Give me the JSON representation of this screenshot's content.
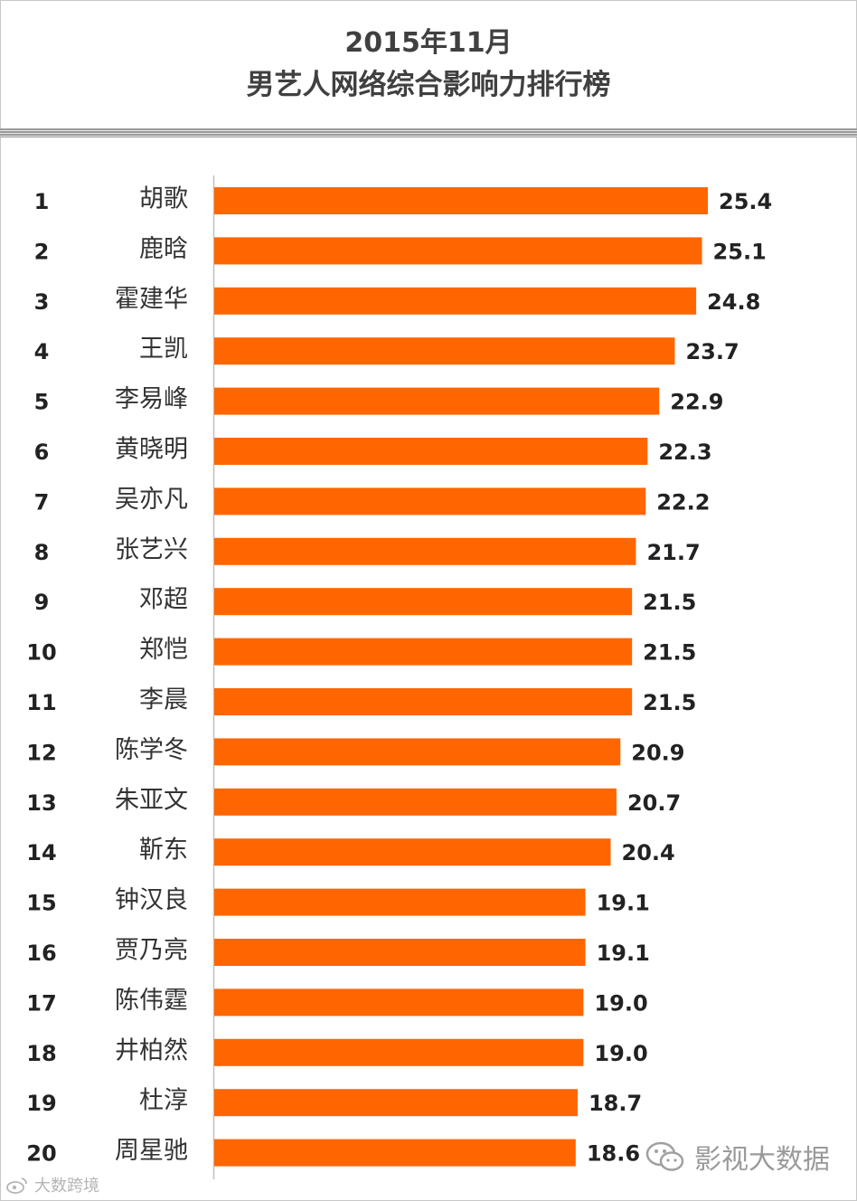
{
  "chart_data": {
    "type": "bar",
    "orientation": "horizontal",
    "title": "2015年11月",
    "subtitle": "男艺人网络综合影响力排行榜",
    "ranks": [
      "1",
      "2",
      "3",
      "4",
      "5",
      "6",
      "7",
      "8",
      "9",
      "10",
      "11",
      "12",
      "13",
      "14",
      "15",
      "16",
      "17",
      "18",
      "19",
      "20"
    ],
    "categories": [
      "胡歌",
      "鹿晗",
      "霍建华",
      "王凯",
      "李易峰",
      "黄晓明",
      "吴亦凡",
      "张艺兴",
      "邓超",
      "郑恺",
      "李晨",
      "陈学冬",
      "朱亚文",
      "靳东",
      "钟汉良",
      "贾乃亮",
      "陈伟霆",
      "井柏然",
      "杜淳",
      "周星驰"
    ],
    "values": [
      25.4,
      25.1,
      24.8,
      23.7,
      22.9,
      22.3,
      22.2,
      21.7,
      21.5,
      21.5,
      21.5,
      20.9,
      20.7,
      20.4,
      19.1,
      19.1,
      19.0,
      19.0,
      18.7,
      18.6
    ],
    "value_labels": [
      "25.4",
      "25.1",
      "24.8",
      "23.7",
      "22.9",
      "22.3",
      "22.2",
      "21.7",
      "21.5",
      "21.5",
      "21.5",
      "20.9",
      "20.7",
      "20.4",
      "19.1",
      "19.1",
      "19.0",
      "19.0",
      "18.7",
      "18.6"
    ],
    "xlim": [
      0,
      25.4
    ],
    "bar_color": "#ff6600",
    "data_labels": true,
    "grid": false,
    "legend": "none"
  },
  "watermarks": {
    "right_text": "影视大数据",
    "right_icon": "wechat-icon",
    "left_text": "大数跨境",
    "left_icon": "weibo-icon"
  }
}
